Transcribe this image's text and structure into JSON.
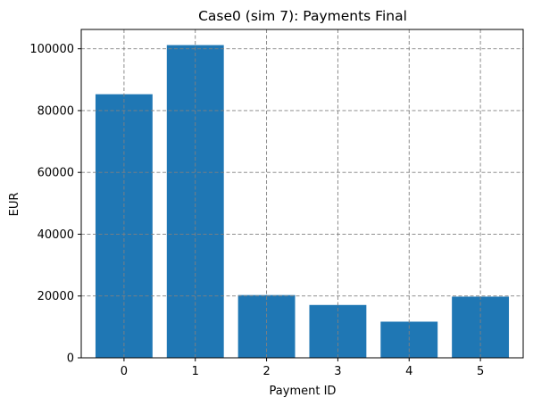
{
  "chart_data": {
    "type": "bar",
    "title": "Case0 (sim 7): Payments Final",
    "xlabel": "Payment ID",
    "ylabel": "EUR",
    "categories": [
      "0",
      "1",
      "2",
      "3",
      "4",
      "5"
    ],
    "values": [
      85300,
      101200,
      20300,
      17100,
      11700,
      19800
    ],
    "ylim": [
      0,
      106260
    ],
    "yticks": [
      0,
      20000,
      40000,
      60000,
      80000,
      100000
    ],
    "ytick_labels": [
      "0",
      "20000",
      "40000",
      "60000",
      "80000",
      "100000"
    ],
    "grid": true,
    "bar_color": "#1f77b4",
    "grid_color": "#808080"
  }
}
